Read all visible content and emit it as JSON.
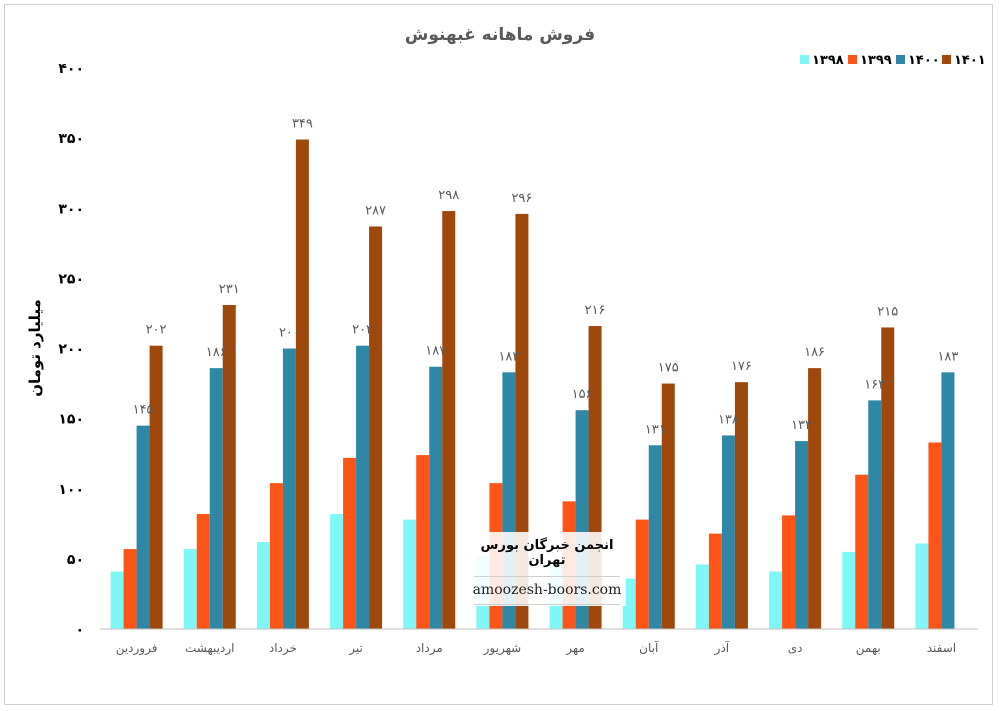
{
  "chart_data": {
    "type": "bar",
    "title": "فروش ماهانه غبهنوش",
    "ylabel": "میلیارد تومان",
    "xlabel": "",
    "ylim": [
      0,
      400
    ],
    "yticks": [
      "۰",
      "۵۰",
      "۱۰۰",
      "۱۵۰",
      "۲۰۰",
      "۲۵۰",
      "۳۰۰",
      "۳۵۰",
      "۴۰۰"
    ],
    "ytick_values": [
      0,
      50,
      100,
      150,
      200,
      250,
      300,
      350,
      400
    ],
    "categories": [
      "فروردین",
      "اردیبهشت",
      "خرداد",
      "تیر",
      "مرداد",
      "شهریور",
      "مهر",
      "آبان",
      "آذر",
      "دی",
      "بهمن",
      "اسفند"
    ],
    "grid": false,
    "legend_position": "top-right",
    "series": [
      {
        "name": "۱۳۹۸",
        "color": "#7ff7f7",
        "values": [
          41,
          57,
          62,
          82,
          78,
          52,
          47,
          36,
          46,
          41,
          55,
          61
        ],
        "labels": []
      },
      {
        "name": "۱۳۹۹",
        "color": "#fe5418",
        "values": [
          57,
          82,
          104,
          122,
          124,
          104,
          91,
          78,
          68,
          81,
          110,
          133
        ],
        "labels": []
      },
      {
        "name": "۱۴۰۰",
        "color": "#2f87a6",
        "values": [
          145,
          186,
          200,
          202,
          187,
          183,
          156,
          131,
          138,
          134,
          163,
          183
        ],
        "labels": [
          "۱۴۵",
          "۱۸۶",
          "۲۰۰",
          "۲۰۲",
          "۱۸۷",
          "۱۸۳",
          "۱۵۶",
          "۱۳۱",
          "۱۳۸",
          "۱۳۴",
          "۱۶۳",
          "۱۸۳"
        ]
      },
      {
        "name": "۱۴۰۱",
        "color": "#9e480e",
        "values": [
          202,
          231,
          349,
          287,
          298,
          296,
          216,
          175,
          176,
          186,
          215,
          null
        ],
        "labels": [
          "۲۰۲",
          "۲۳۱",
          "۳۴۹",
          "۲۸۷",
          "۲۹۸",
          "۲۹۶",
          "۲۱۶",
          "۱۷۵",
          "۱۷۶",
          "۱۸۶",
          "۲۱۵",
          ""
        ]
      }
    ]
  },
  "watermark": {
    "title": "انجمن خبرگان بورس تهران",
    "url": "amoozesh-boors.com"
  }
}
